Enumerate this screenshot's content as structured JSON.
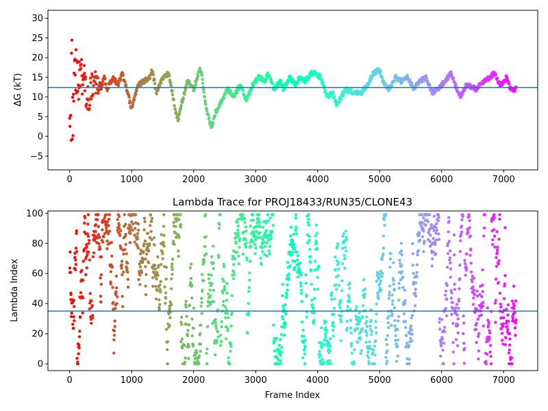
{
  "chart_data": [
    {
      "type": "scatter",
      "title": "",
      "xlabel": "",
      "ylabel": "ΔG (kT)",
      "xlim": [
        -350,
        7550
      ],
      "ylim": [
        -8.5,
        32
      ],
      "xticks": [
        0,
        1000,
        2000,
        3000,
        4000,
        5000,
        6000,
        7000
      ],
      "yticks": [
        -5,
        0,
        5,
        10,
        15,
        20,
        25,
        30
      ],
      "colormap": "rainbow (frame index, late=purple, early=red)",
      "hline": 12.4,
      "hline_color": "#1f77b4",
      "series_trend": {
        "x": [
          0,
          100,
          200,
          300,
          400,
          500,
          560,
          600,
          700,
          780,
          850,
          950,
          1000,
          1100,
          1200,
          1300,
          1330,
          1400,
          1500,
          1600,
          1700,
          1750,
          1800,
          1900,
          2000,
          2100,
          2130,
          2200,
          2290,
          2350,
          2450,
          2550,
          2650,
          2750,
          2850,
          2950,
          3050,
          3150,
          3200,
          3300,
          3400,
          3450,
          3550,
          3650,
          3700,
          3800,
          3900,
          3960,
          4050,
          4150,
          4250,
          4300,
          4350,
          4450,
          4600,
          4700,
          4800,
          4900,
          5000,
          5050,
          5150,
          5250,
          5350,
          5450,
          5550,
          5650,
          5750,
          5850,
          6000,
          6100,
          6150,
          6250,
          6300,
          6400,
          6550,
          6700,
          6850,
          6950,
          7050,
          7100,
          7200
        ],
        "y": [
          12,
          15,
          16,
          10,
          14,
          12,
          15,
          12,
          15,
          13,
          16,
          10,
          7,
          13,
          14,
          15,
          17,
          11,
          15,
          16,
          7,
          4,
          8,
          14,
          12,
          17,
          16,
          7,
          2,
          6,
          9,
          12,
          10,
          13,
          9,
          13,
          15,
          14,
          16,
          12,
          14,
          12,
          15,
          13,
          15,
          14,
          16,
          16,
          15,
          10,
          11,
          8,
          9,
          12,
          11,
          11,
          13,
          16,
          17,
          14,
          12,
          15,
          14,
          15,
          12,
          14,
          15,
          11,
          13,
          15,
          16,
          12,
          10,
          13,
          12,
          14,
          16,
          13,
          15,
          12,
          12
        ]
      }
    },
    {
      "type": "scatter",
      "title": "Lambda Trace for PROJ18433/RUN35/CLONE43",
      "xlabel": "Frame Index",
      "ylabel": "Lambda Index",
      "xlim": [
        -350,
        7550
      ],
      "ylim": [
        -4.5,
        101.5
      ],
      "xticks": [
        0,
        1000,
        2000,
        3000,
        4000,
        5000,
        6000,
        7000
      ],
      "yticks": [
        0,
        20,
        40,
        60,
        80,
        100
      ],
      "colormap": "rainbow (frame index, late=purple, early=red)",
      "hline": 35,
      "hline_color": "#1f77b4",
      "lambda_range": [
        0,
        99
      ]
    }
  ],
  "axes": {
    "top": {
      "xticklabels": [
        "0",
        "1000",
        "2000",
        "3000",
        "4000",
        "5000",
        "6000",
        "7000"
      ],
      "yticklabels": [
        "−5",
        "0",
        "5",
        "10",
        "15",
        "20",
        "25",
        "30"
      ],
      "ylabel": "ΔG (kT)"
    },
    "bottom": {
      "title": "Lambda Trace for PROJ18433/RUN35/CLONE43",
      "xlabel": "Frame Index",
      "ylabel": "Lambda Index",
      "xticklabels": [
        "0",
        "1000",
        "2000",
        "3000",
        "4000",
        "5000",
        "6000",
        "7000"
      ],
      "yticklabels": [
        "0",
        "20",
        "40",
        "60",
        "80",
        "100"
      ]
    }
  },
  "colors": {
    "hline": "#1f77b4",
    "background": "#ffffff",
    "axis": "#000000"
  }
}
